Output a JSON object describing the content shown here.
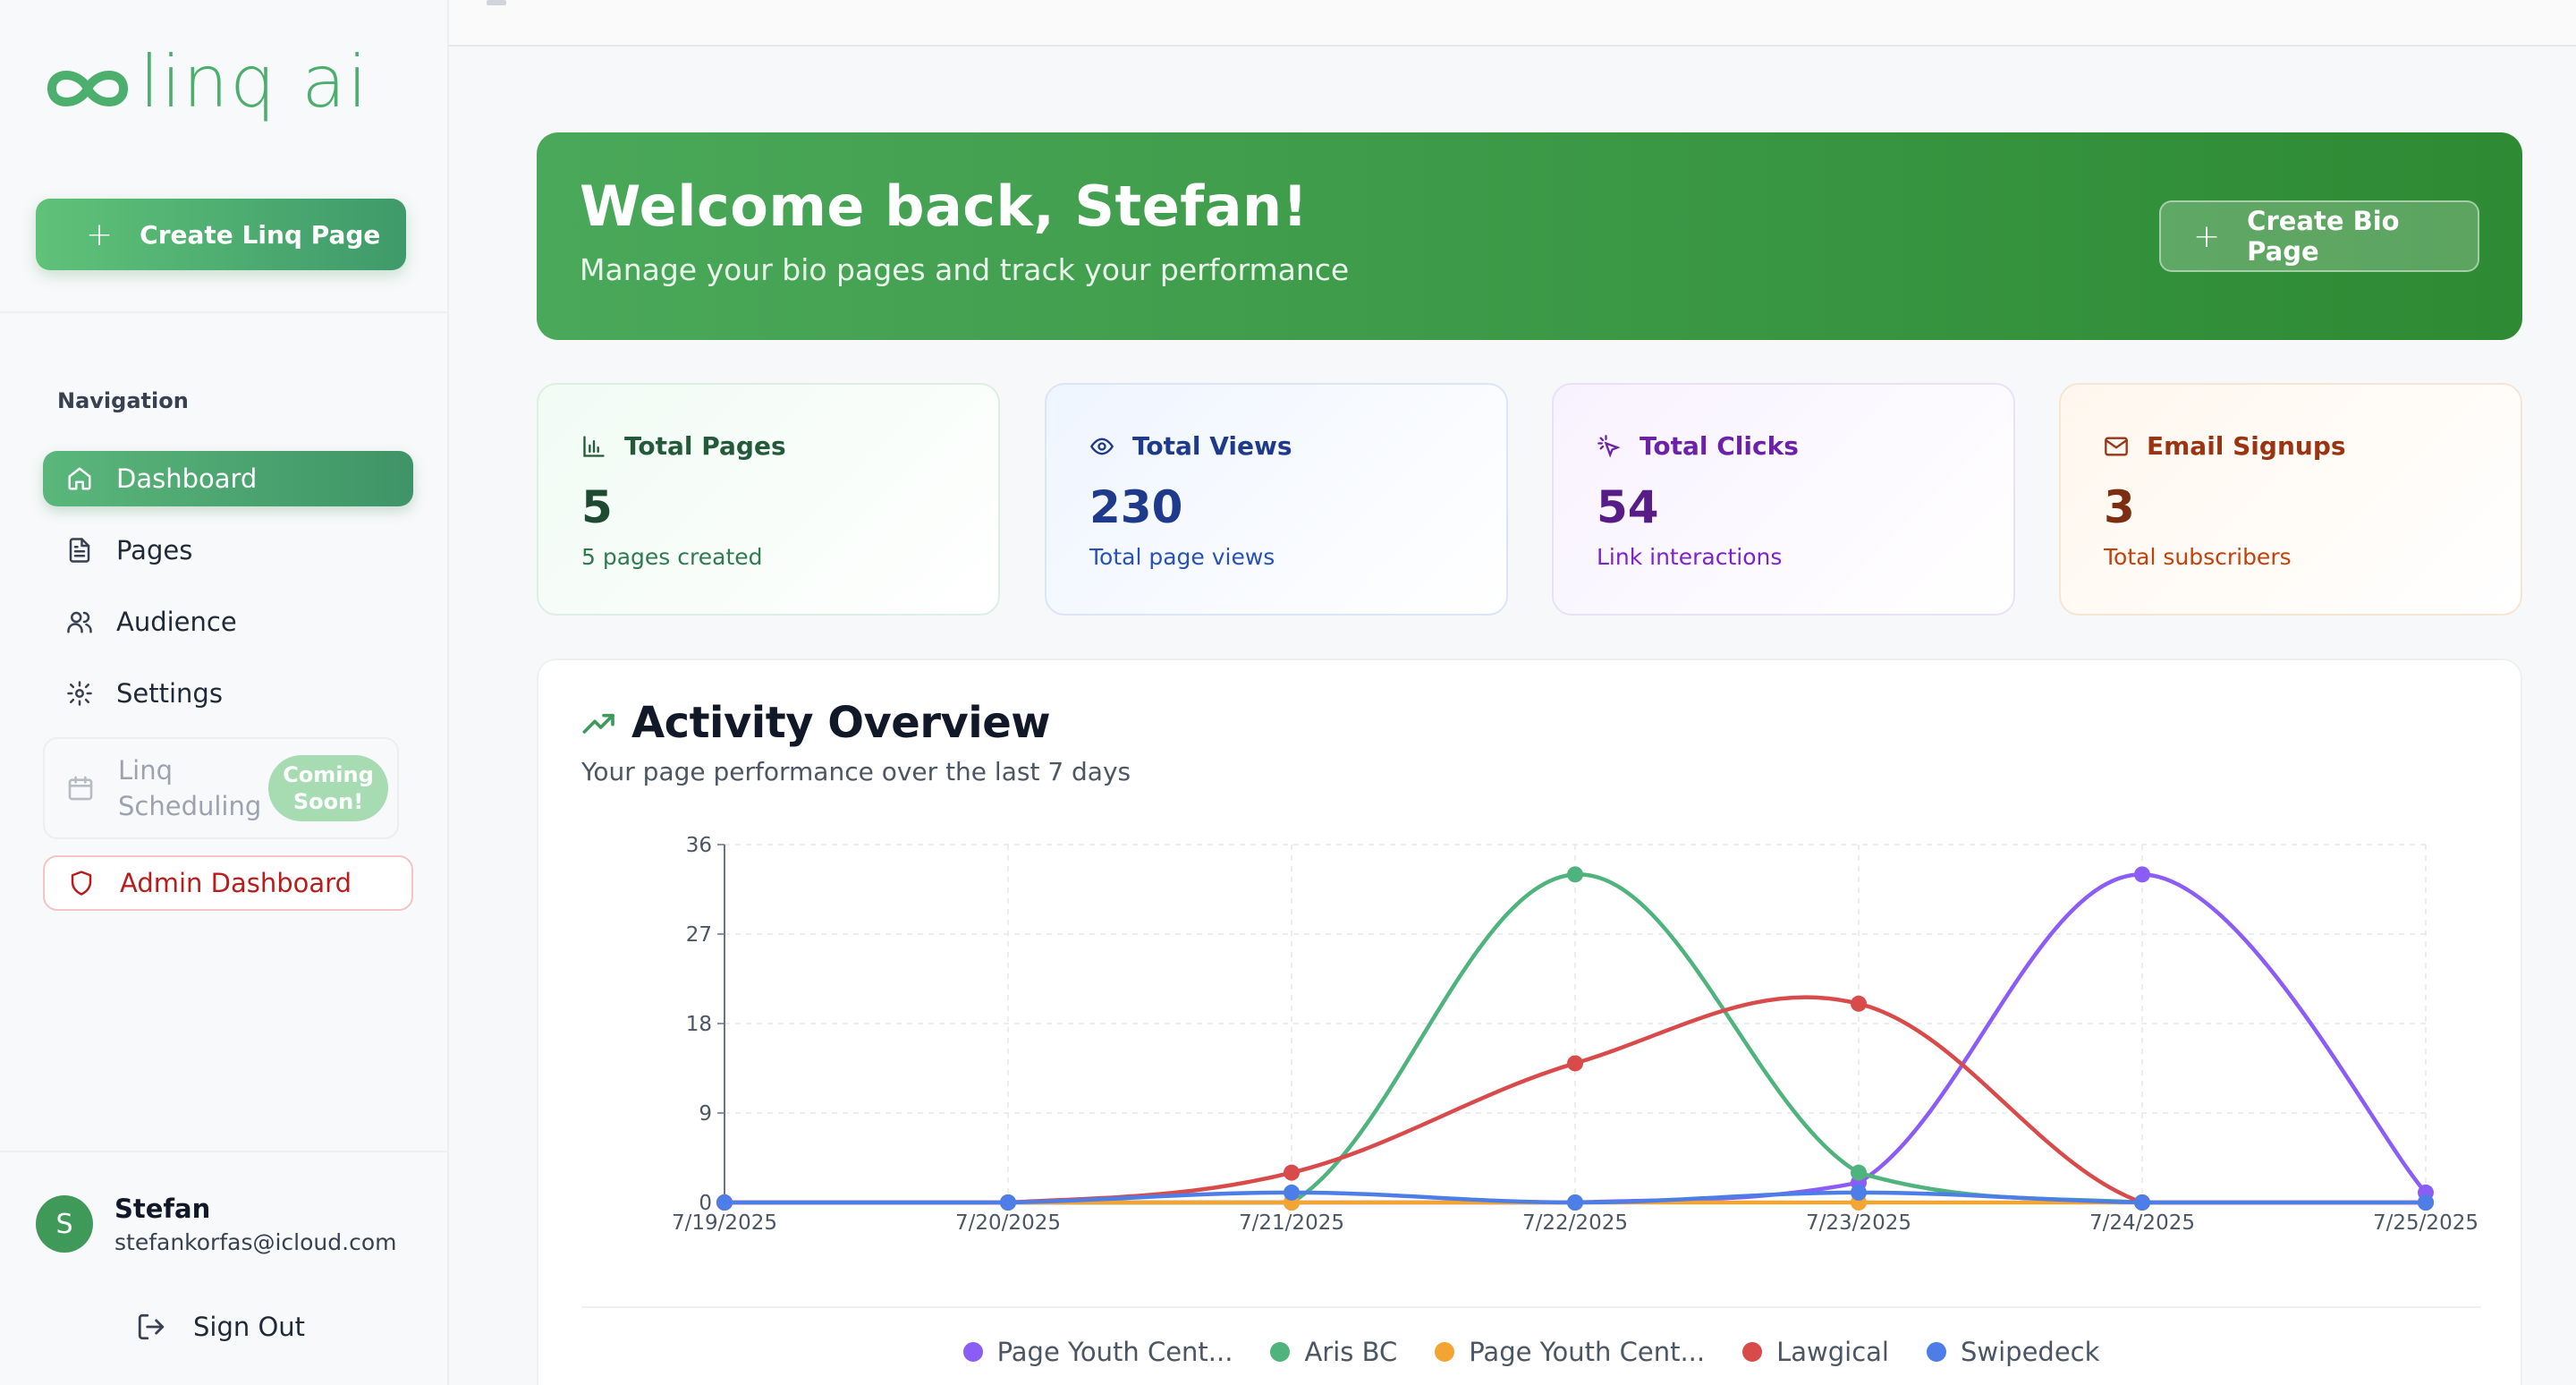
{
  "sidebar": {
    "logo_text": "linq ai",
    "create_label": "Create Linq Page",
    "nav_heading": "Navigation",
    "items": [
      {
        "label": "Dashboard"
      },
      {
        "label": "Pages"
      },
      {
        "label": "Audience"
      },
      {
        "label": "Settings"
      }
    ],
    "scheduling_label": "Linq Scheduling",
    "coming_soon": "Coming Soon!",
    "admin_label": "Admin Dashboard",
    "user": {
      "initial": "S",
      "name": "Stefan",
      "email": "stefankorfas@icloud.com"
    },
    "sign_out": "Sign Out"
  },
  "banner": {
    "title": "Welcome back, Stefan!",
    "subtitle": "Manage your bio pages and track your performance",
    "button": "Create Bio Page"
  },
  "stats": [
    {
      "title": "Total Pages",
      "value": "5",
      "sub": "5 pages created",
      "icon": "bar-chart-icon"
    },
    {
      "title": "Total Views",
      "value": "230",
      "sub": "Total page views",
      "icon": "eye-icon"
    },
    {
      "title": "Total Clicks",
      "value": "54",
      "sub": "Link interactions",
      "icon": "pointer-click-icon"
    },
    {
      "title": "Email Signups",
      "value": "3",
      "sub": "Total subscribers",
      "icon": "mail-icon"
    }
  ],
  "activity": {
    "title": "Activity Overview",
    "subtitle": "Your page performance over the last 7 days"
  },
  "chart_data": {
    "type": "line",
    "title": "Activity Overview",
    "categories": [
      "7/19/2025",
      "7/20/2025",
      "7/21/2025",
      "7/22/2025",
      "7/23/2025",
      "7/24/2025",
      "7/25/2025"
    ],
    "y_ticks": [
      0,
      9,
      18,
      27,
      36
    ],
    "ylim": [
      0,
      36
    ],
    "grid": true,
    "legend_position": "bottom",
    "series": [
      {
        "name": "Page Youth Cent...",
        "color": "#8b5cf6",
        "values": [
          0,
          0,
          0,
          0,
          2,
          33,
          1
        ]
      },
      {
        "name": "Aris BC",
        "color": "#4fb37e",
        "values": [
          0,
          0,
          0,
          33,
          3,
          0,
          0
        ]
      },
      {
        "name": "Page Youth Cent...",
        "color": "#f2a533",
        "values": [
          0,
          0,
          0,
          0,
          0,
          0,
          0
        ]
      },
      {
        "name": "Lawgical",
        "color": "#d94a4a",
        "values": [
          0,
          0,
          3,
          14,
          20,
          0,
          0
        ]
      },
      {
        "name": "Swipedeck",
        "color": "#4d7ee8",
        "values": [
          0,
          0,
          1,
          0,
          1,
          0,
          0
        ]
      }
    ]
  }
}
